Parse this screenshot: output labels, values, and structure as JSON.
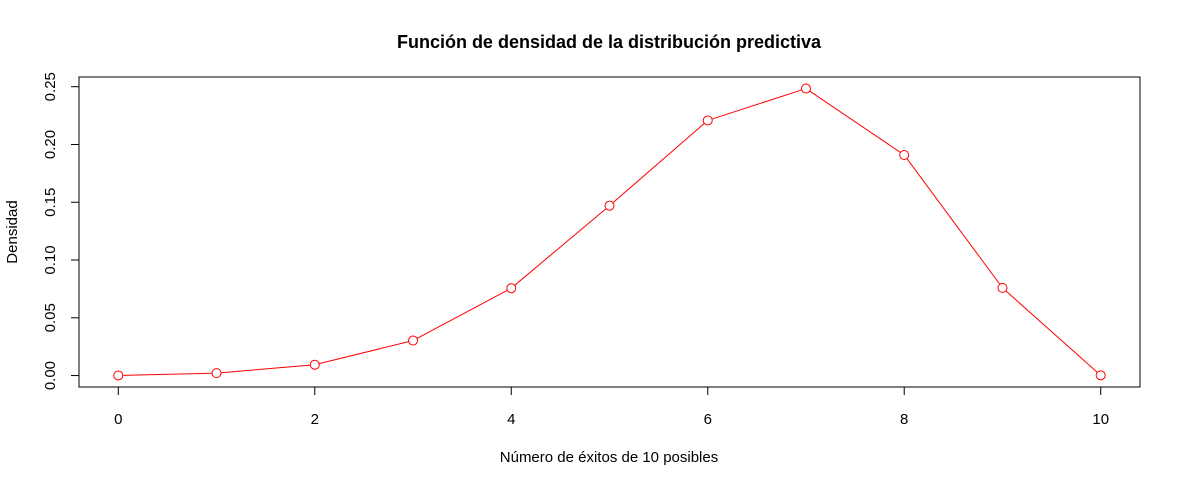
{
  "chart_data": {
    "type": "line",
    "title": "Función de densidad de la distribución predictiva",
    "xlabel": "Número de éxitos de 10 posibles",
    "ylabel": "Densidad",
    "x": [
      0,
      1,
      2,
      3,
      4,
      5,
      6,
      7,
      8,
      9,
      10
    ],
    "series": [
      {
        "values": [
          0.0001,
          0.0021,
          0.0094,
          0.0303,
          0.0756,
          0.147,
          0.2208,
          0.2484,
          0.1909,
          0.0759,
          0.0002
        ]
      }
    ],
    "xlim": [
      -0.4,
      10.4
    ],
    "ylim": [
      -0.0099,
      0.2584
    ],
    "xticks": [
      "0",
      "2",
      "4",
      "6",
      "8",
      "10"
    ],
    "yticks": [
      "0.00",
      "0.05",
      "0.10",
      "0.15",
      "0.20",
      "0.25"
    ],
    "line_style": "both",
    "marker": "open-circle",
    "series_color": "#ff0000",
    "grid": false,
    "legend": "none"
  }
}
